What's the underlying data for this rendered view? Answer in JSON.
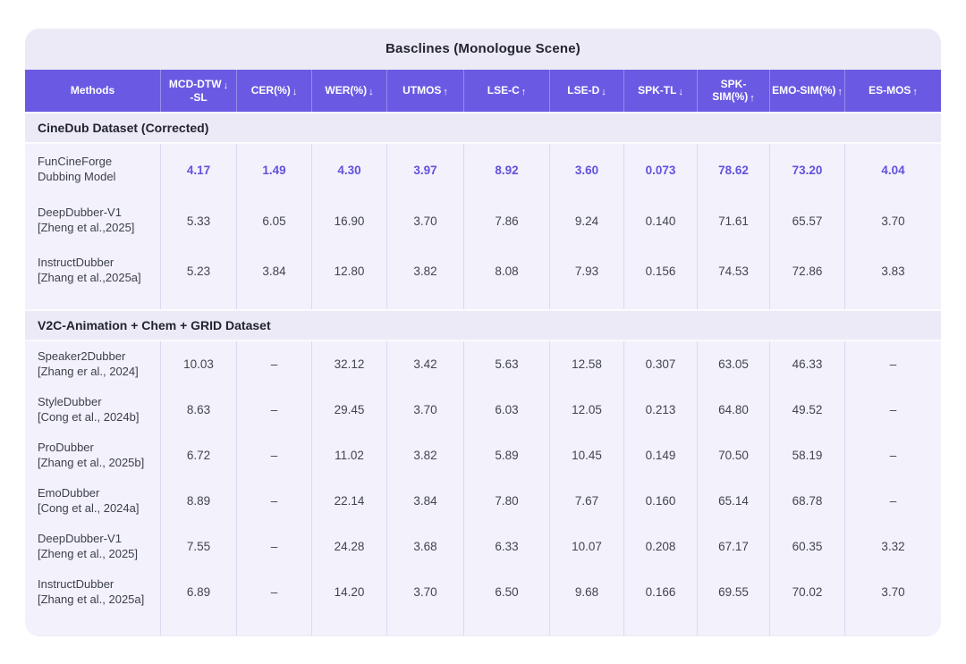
{
  "title": "Basclines (Monologue Scene)",
  "colors": {
    "page_background": "#FFFFFF",
    "card_background": "#ECEAF6",
    "header_background": "#6A5AE3",
    "header_text": "#FFFFFF",
    "rows_background": "#F3F1FB",
    "column_divider": "#DED9F0",
    "highlight_value": "#6152DE",
    "body_text": "#41454E",
    "section_text": "#22252E"
  },
  "chart_data": {
    "type": "table",
    "title": "Basclines (Monologue Scene)",
    "columns": [
      {
        "label": "Methods",
        "arrow": ""
      },
      {
        "label": "MCD-DTW",
        "sub": "-SL",
        "arrow": "↓"
      },
      {
        "label": "CER(%)",
        "arrow": "↓"
      },
      {
        "label": "WER(%)",
        "arrow": "↓"
      },
      {
        "label": "UTMOS",
        "arrow": "↑"
      },
      {
        "label": "LSE-C",
        "arrow": "↑"
      },
      {
        "label": "LSE-D",
        "arrow": "↓"
      },
      {
        "label": "SPK-TL",
        "arrow": "↓"
      },
      {
        "label": "SPK-SIM(%)",
        "arrow": "↑"
      },
      {
        "label": "EMO-SIM(%)",
        "arrow": "↑"
      },
      {
        "label": "ES-MOS",
        "arrow": "↑"
      }
    ],
    "groups": [
      {
        "section": "CineDub Dataset (Corrected)",
        "rows": [
          {
            "method": "FunCineForge",
            "citation": "Dubbing Model",
            "highlight": true,
            "values": [
              "4.17",
              "1.49",
              "4.30",
              "3.97",
              "8.92",
              "3.60",
              "0.073",
              "78.62",
              "73.20",
              "4.04"
            ]
          },
          {
            "method": "DeepDubber-V1",
            "citation": "[Zheng et al.,2025]",
            "highlight": false,
            "values": [
              "5.33",
              "6.05",
              "16.90",
              "3.70",
              "7.86",
              "9.24",
              "0.140",
              "71.61",
              "65.57",
              "3.70"
            ]
          },
          {
            "method": "InstructDubber",
            "citation": "[Zhang et al.,2025a]",
            "highlight": false,
            "values": [
              "5.23",
              "3.84",
              "12.80",
              "3.82",
              "8.08",
              "7.93",
              "0.156",
              "74.53",
              "72.86",
              "3.83"
            ]
          }
        ]
      },
      {
        "section": "V2C-Animation + Chem + GRID Dataset",
        "rows": [
          {
            "method": "Speaker2Dubber",
            "citation": "[Zhang er al., 2024]",
            "highlight": false,
            "values": [
              "10.03",
              "–",
              "32.12",
              "3.42",
              "5.63",
              "12.58",
              "0.307",
              "63.05",
              "46.33",
              "–"
            ]
          },
          {
            "method": "StyleDubber",
            "citation": "[Cong et al., 2024b]",
            "highlight": false,
            "values": [
              "8.63",
              "–",
              "29.45",
              "3.70",
              "6.03",
              "12.05",
              "0.213",
              "64.80",
              "49.52",
              "–"
            ]
          },
          {
            "method": "ProDubber",
            "citation": "[Zhang et al., 2025b]",
            "highlight": false,
            "values": [
              "6.72",
              "–",
              "11.02",
              "3.82",
              "5.89",
              "10.45",
              "0.149",
              "70.50",
              "58.19",
              "–"
            ]
          },
          {
            "method": "EmoDubber",
            "citation": "[Cong et al., 2024a]",
            "highlight": false,
            "values": [
              "8.89",
              "–",
              "22.14",
              "3.84",
              "7.80",
              "7.67",
              "0.160",
              "65.14",
              "68.78",
              "–"
            ]
          },
          {
            "method": "DeepDubber-V1",
            "citation": "[Zheng et al., 2025]",
            "highlight": false,
            "values": [
              "7.55",
              "–",
              "24.28",
              "3.68",
              "6.33",
              "10.07",
              "0.208",
              "67.17",
              "60.35",
              "3.32"
            ]
          },
          {
            "method": "InstructDubber",
            "citation": "[Zhang et al., 2025a]",
            "highlight": false,
            "values": [
              "6.89",
              "–",
              "14.20",
              "3.70",
              "6.50",
              "9.68",
              "0.166",
              "69.55",
              "70.02",
              "3.70"
            ]
          }
        ]
      }
    ]
  }
}
